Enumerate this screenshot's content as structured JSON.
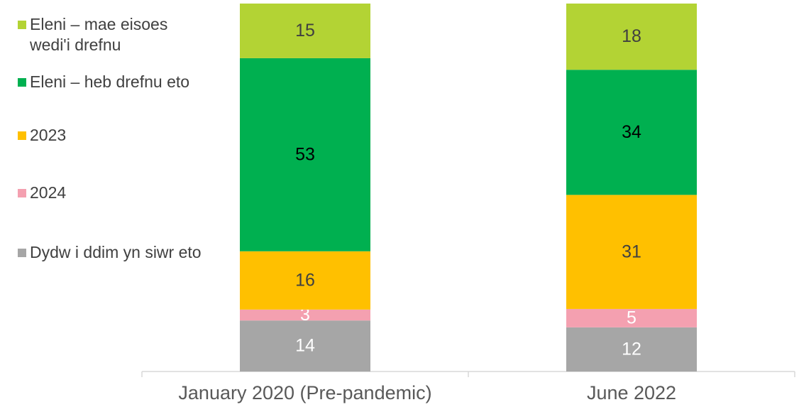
{
  "chart_data": {
    "type": "stacked_bar",
    "categories": [
      "January 2020 (Pre-pandemic)",
      "June 2022"
    ],
    "series": [
      {
        "name": "Eleni – mae eisoes wedi'i drefnu",
        "color": "#b3d334",
        "label_color": "#404040",
        "values": [
          15,
          18
        ]
      },
      {
        "name": "Eleni – heb drefnu eto",
        "color": "#00b050",
        "label_color": "#000000",
        "values": [
          53,
          34
        ]
      },
      {
        "name": "2023",
        "color": "#ffc000",
        "label_color": "#404040",
        "values": [
          16,
          31
        ]
      },
      {
        "name": "2024",
        "color": "#f4a0b0",
        "label_color": "#ffffff",
        "values": [
          3,
          5
        ]
      },
      {
        "name": "Dydw i ddim yn siwr eto",
        "color": "#a6a6a6",
        "label_color": "#ffffff",
        "values": [
          14,
          12
        ]
      }
    ],
    "legend": "left"
  }
}
